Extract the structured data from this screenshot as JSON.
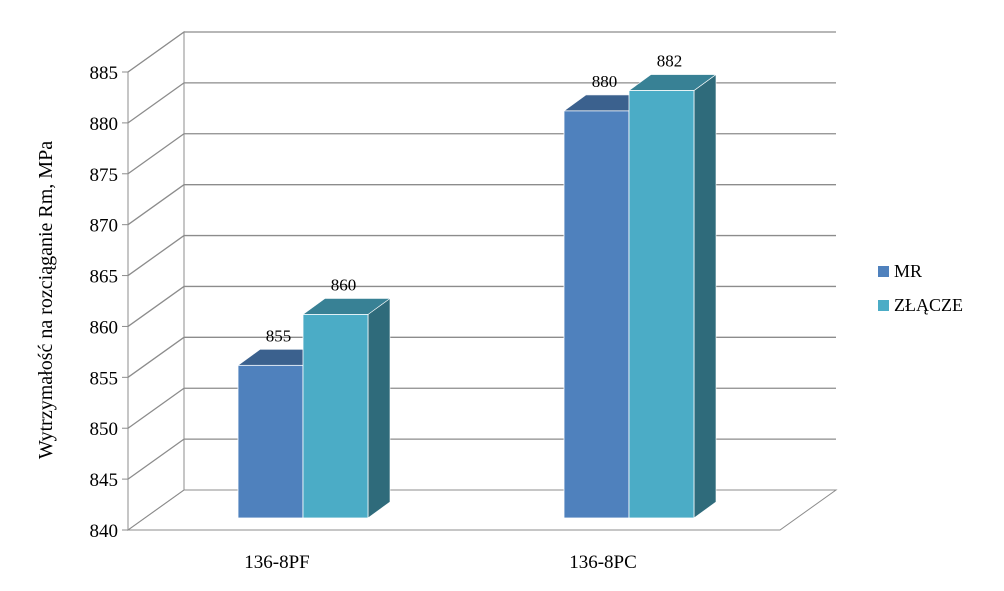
{
  "chart_data": {
    "type": "bar",
    "title": "",
    "xlabel": "",
    "ylabel": "Wytrzymałość na rozciąganie  Rm, MPa",
    "categories": [
      "136-8PF",
      "136-8PC"
    ],
    "series": [
      {
        "name": "MR",
        "values": [
          855,
          880
        ],
        "color": "#4f81bd"
      },
      {
        "name": "ZŁĄCZE",
        "values": [
          860,
          882
        ],
        "color": "#4bacc6"
      }
    ],
    "ylim": [
      840,
      885
    ],
    "yticks": [
      "840",
      "845",
      "850",
      "855",
      "860",
      "865",
      "870",
      "875",
      "880",
      "885"
    ],
    "data_labels": [
      [
        "855",
        "880"
      ],
      [
        "860",
        "882"
      ]
    ],
    "grid": true,
    "legend": "right",
    "style": "3d-clustered-column"
  }
}
